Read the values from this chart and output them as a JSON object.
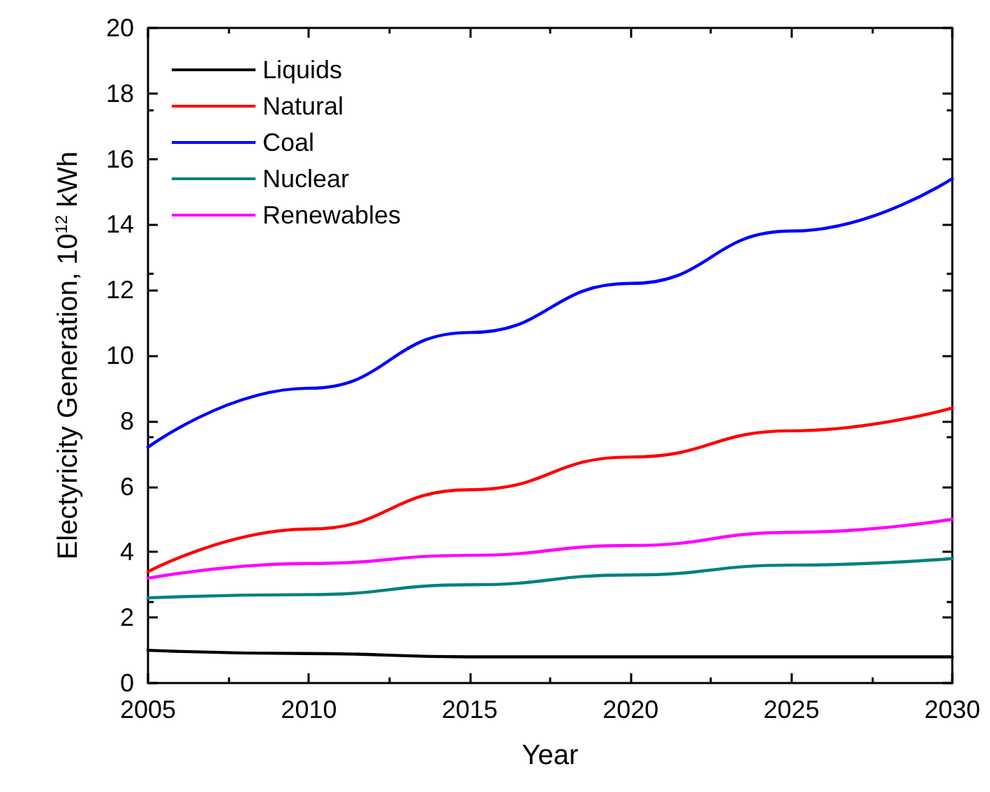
{
  "chart_data": {
    "type": "line",
    "xlabel": "Year",
    "ylabel": "Electyricity Generation, 10$^{12}$ kWh",
    "x": [
      2005,
      2010,
      2015,
      2020,
      2025,
      2030
    ],
    "series": [
      {
        "name": "Liquids",
        "color": "#000000",
        "values": [
          1.0,
          0.9,
          0.8,
          0.8,
          0.8,
          0.8
        ]
      },
      {
        "name": "Natural",
        "color": "#ff0000",
        "values": [
          3.4,
          4.7,
          5.9,
          6.9,
          7.7,
          8.4
        ]
      },
      {
        "name": "Coal",
        "color": "#0000ff",
        "values": [
          7.2,
          9.0,
          10.7,
          12.2,
          13.8,
          15.4
        ]
      },
      {
        "name": "Nuclear",
        "color": "#008080",
        "values": [
          2.6,
          2.7,
          3.0,
          3.3,
          3.6,
          3.8
        ]
      },
      {
        "name": "Renewables",
        "color": "#ff00ff",
        "values": [
          3.2,
          3.65,
          3.9,
          4.2,
          4.6,
          5.0
        ]
      }
    ],
    "xlim": [
      2005,
      2030
    ],
    "xticks": [
      2005,
      2010,
      2015,
      2020,
      2025,
      2030
    ],
    "ylim": [
      0,
      20
    ],
    "yticks": [
      0,
      2,
      4,
      6,
      8,
      10,
      12,
      14,
      16,
      18,
      20
    ],
    "legend": "top left",
    "grid": false,
    "marker": "none",
    "line_style": "solid"
  }
}
